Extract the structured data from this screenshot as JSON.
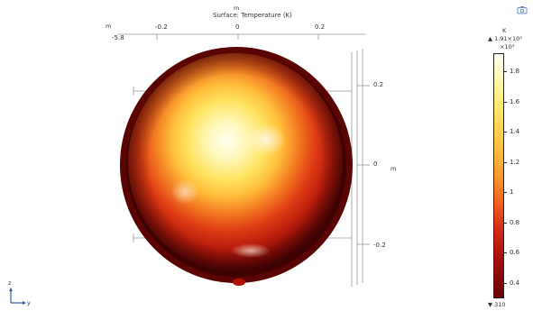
{
  "plot": {
    "title_unit": "m",
    "title": "Surface: Temperature (K)",
    "top_axis": {
      "unit": "m",
      "ticks": [
        "-5.8",
        "-0.2",
        "0",
        "0.2"
      ]
    },
    "right_axis": {
      "ticks": [
        "0.2",
        "0",
        "-0.2"
      ],
      "unit": "m"
    },
    "triad": {
      "z_label": "z",
      "y_label": "y"
    }
  },
  "colorbar": {
    "unit": "K",
    "max_label": "▲ 1.91×10³",
    "scale_label": "×10³",
    "ticks": [
      "1.8",
      "1.6",
      "1.4",
      "1.2",
      "1",
      "0.8",
      "0.6",
      "0.4"
    ],
    "min_label": "▼ 310",
    "min_value": 310,
    "max_value": 1910
  },
  "colors": {
    "hot": "#fff7c0",
    "mid": "#ffb300",
    "cool": "#c81d0e",
    "cold": "#5e0202"
  },
  "corner_icon_name": "camera-icon"
}
